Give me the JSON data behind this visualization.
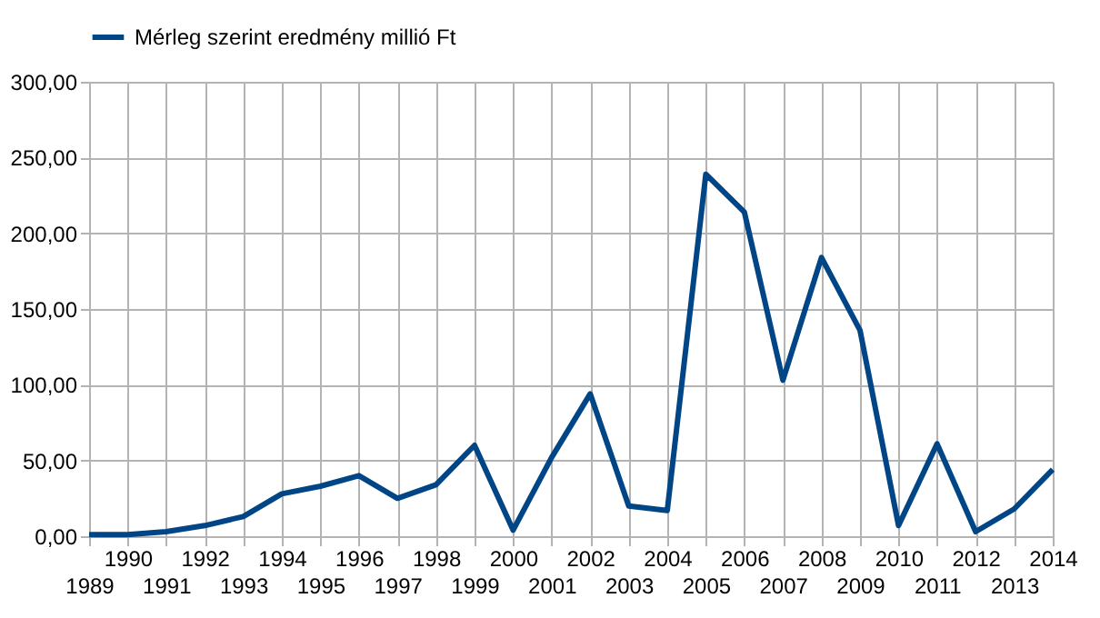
{
  "chart_data": {
    "type": "line",
    "categories": [
      "1989",
      "1990",
      "1991",
      "1992",
      "1993",
      "1994",
      "1995",
      "1996",
      "1997",
      "1998",
      "1999",
      "2000",
      "2001",
      "2002",
      "2003",
      "2004",
      "2005",
      "2006",
      "2007",
      "2008",
      "2009",
      "2010",
      "2011",
      "2012",
      "2013",
      "2014"
    ],
    "series": [
      {
        "name": "Mérleg szerint eredmény millió Ft",
        "color": "#004586",
        "values": [
          1,
          1,
          3,
          7,
          13,
          28,
          33,
          40,
          25,
          34,
          60,
          4,
          52,
          94,
          20,
          17,
          239,
          214,
          103,
          184,
          136,
          7,
          61,
          3,
          18,
          44
        ]
      }
    ],
    "ylim": [
      0,
      300
    ],
    "yticks": [
      {
        "value": 0,
        "label": "0,00"
      },
      {
        "value": 50,
        "label": "50,00"
      },
      {
        "value": 100,
        "label": "100,00"
      },
      {
        "value": 150,
        "label": "150,00"
      },
      {
        "value": 200,
        "label": "200,00"
      },
      {
        "value": 250,
        "label": "250,00"
      },
      {
        "value": 300,
        "label": "300,00"
      }
    ],
    "grid": true,
    "legend": "top",
    "marker": "none",
    "line_style": "solid"
  }
}
